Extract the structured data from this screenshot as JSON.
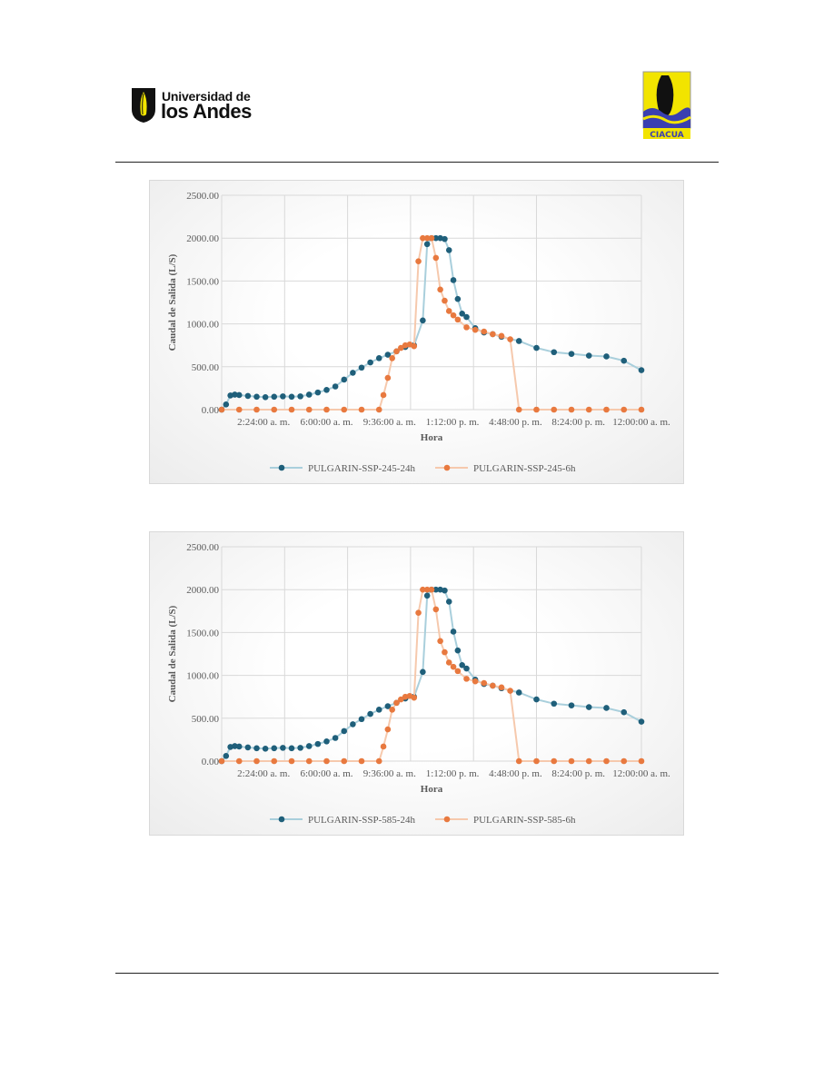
{
  "header": {
    "logo_left_line1": "Universidad de",
    "logo_left_line2": "los Andes",
    "logo_right_text": "CIACUA",
    "colors": {
      "shield": "#111111",
      "crest": "#f2e400",
      "water": "#3a3fb0"
    }
  },
  "chart_data": [
    {
      "type": "scatter",
      "ylabel": "Caudal de Salida (L/S)",
      "xlabel": "Hora",
      "ylim": [
        0,
        2500
      ],
      "yticks": [
        "0.00",
        "500.00",
        "1000.00",
        "1500.00",
        "2000.00",
        "2500.00"
      ],
      "xticks": [
        "2:24:00 a. m.",
        "6:00:00 a. m.",
        "9:36:00 a. m.",
        "1:12:00 p. m.",
        "4:48:00 p. m.",
        "8:24:00 p. m.",
        "12:00:00 a. m."
      ],
      "grid": true,
      "legend": "bottom",
      "colors": {
        "series24": "#1f5f7a",
        "series6": "#e8793f",
        "line24": "#a9cfdc",
        "line6": "#f6c9ad"
      },
      "series": [
        {
          "name": "PULGARIN-SSP-245-24h",
          "x": [
            0,
            0.25,
            0.5,
            0.75,
            1,
            1.5,
            2,
            2.5,
            3,
            3.5,
            4,
            4.5,
            5,
            5.5,
            6,
            6.5,
            7,
            7.5,
            8,
            8.5,
            9,
            9.5,
            10,
            10.5,
            11,
            11.5,
            11.75,
            12,
            12.25,
            12.5,
            12.75,
            13,
            13.25,
            13.5,
            13.75,
            14,
            14.5,
            15,
            15.5,
            16,
            17,
            18,
            19,
            20,
            21,
            22,
            23,
            24
          ],
          "y": [
            0,
            60,
            165,
            175,
            170,
            160,
            150,
            145,
            150,
            155,
            150,
            155,
            175,
            200,
            230,
            270,
            350,
            430,
            490,
            550,
            600,
            640,
            680,
            730,
            750,
            1040,
            1930,
            2000,
            2000,
            2000,
            1990,
            1860,
            1510,
            1290,
            1120,
            1080,
            950,
            900,
            880,
            850,
            800,
            720,
            670,
            650,
            630,
            620,
            570,
            460
          ]
        },
        {
          "name": "PULGARIN-SSP-245-6h",
          "x": [
            0,
            1,
            2,
            3,
            4,
            5,
            6,
            7,
            8,
            9,
            9.25,
            9.5,
            9.75,
            10,
            10.25,
            10.5,
            10.75,
            11,
            11.25,
            11.5,
            11.75,
            12,
            12.25,
            12.5,
            12.75,
            13,
            13.25,
            13.5,
            14,
            14.5,
            15,
            15.5,
            16,
            16.5,
            17,
            18,
            19,
            20,
            21,
            22,
            23,
            24
          ],
          "y": [
            0,
            0,
            0,
            0,
            0,
            0,
            0,
            0,
            0,
            0,
            170,
            370,
            600,
            680,
            720,
            750,
            760,
            740,
            1730,
            2000,
            2000,
            2000,
            1770,
            1400,
            1270,
            1150,
            1100,
            1050,
            960,
            930,
            910,
            880,
            860,
            820,
            0,
            0,
            0,
            0,
            0,
            0,
            0,
            0
          ]
        }
      ]
    },
    {
      "type": "scatter",
      "ylabel": "Caudal de Salida (L/S)",
      "xlabel": "Hora",
      "ylim": [
        0,
        2500
      ],
      "yticks": [
        "0.00",
        "500.00",
        "1000.00",
        "1500.00",
        "2000.00",
        "2500.00"
      ],
      "xticks": [
        "2:24:00 a. m.",
        "6:00:00 a. m.",
        "9:36:00 a. m.",
        "1:12:00 p. m.",
        "4:48:00 p. m.",
        "8:24:00 p. m.",
        "12:00:00 a. m."
      ],
      "grid": true,
      "legend": "bottom",
      "colors": {
        "series24": "#1f5f7a",
        "series6": "#e8793f",
        "line24": "#a9cfdc",
        "line6": "#f6c9ad"
      },
      "series": [
        {
          "name": "PULGARIN-SSP-585-24h",
          "x": [
            0,
            0.25,
            0.5,
            0.75,
            1,
            1.5,
            2,
            2.5,
            3,
            3.5,
            4,
            4.5,
            5,
            5.5,
            6,
            6.5,
            7,
            7.5,
            8,
            8.5,
            9,
            9.5,
            10,
            10.5,
            11,
            11.5,
            11.75,
            12,
            12.25,
            12.5,
            12.75,
            13,
            13.25,
            13.5,
            13.75,
            14,
            14.5,
            15,
            15.5,
            16,
            17,
            18,
            19,
            20,
            21,
            22,
            23,
            24
          ],
          "y": [
            0,
            60,
            165,
            175,
            170,
            160,
            150,
            145,
            150,
            155,
            150,
            155,
            175,
            200,
            230,
            270,
            350,
            430,
            490,
            550,
            600,
            640,
            680,
            730,
            750,
            1040,
            1930,
            2000,
            2000,
            2000,
            1990,
            1860,
            1510,
            1290,
            1120,
            1080,
            950,
            900,
            880,
            850,
            800,
            720,
            670,
            650,
            630,
            620,
            570,
            460
          ]
        },
        {
          "name": "PULGARIN-SSP-585-6h",
          "x": [
            0,
            1,
            2,
            3,
            4,
            5,
            6,
            7,
            8,
            9,
            9.25,
            9.5,
            9.75,
            10,
            10.25,
            10.5,
            10.75,
            11,
            11.25,
            11.5,
            11.75,
            12,
            12.25,
            12.5,
            12.75,
            13,
            13.25,
            13.5,
            14,
            14.5,
            15,
            15.5,
            16,
            16.5,
            17,
            18,
            19,
            20,
            21,
            22,
            23,
            24
          ],
          "y": [
            0,
            0,
            0,
            0,
            0,
            0,
            0,
            0,
            0,
            0,
            170,
            370,
            600,
            680,
            720,
            750,
            760,
            740,
            1730,
            2000,
            2000,
            2000,
            1770,
            1400,
            1270,
            1150,
            1100,
            1050,
            960,
            930,
            910,
            880,
            860,
            820,
            0,
            0,
            0,
            0,
            0,
            0,
            0,
            0
          ]
        }
      ]
    }
  ]
}
